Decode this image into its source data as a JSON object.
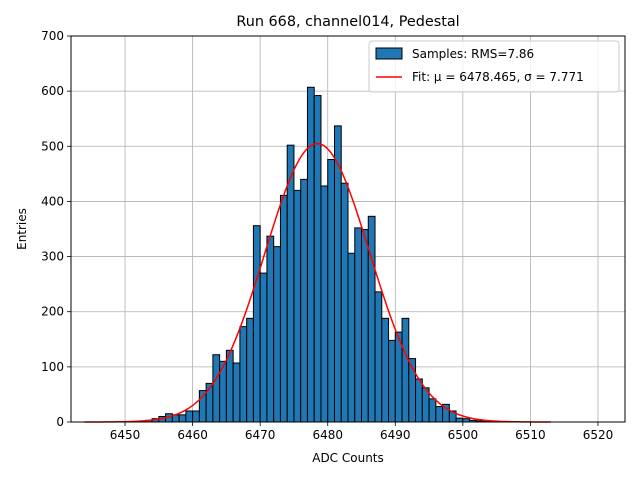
{
  "chart_data": {
    "type": "bar",
    "title": "Run 668, channel014, Pedestal",
    "xlabel": "ADC Counts",
    "ylabel": "Entries",
    "xlim": [
      6442,
      6524
    ],
    "ylim": [
      0,
      700
    ],
    "xticks": [
      6450,
      6460,
      6470,
      6480,
      6490,
      6500,
      6510,
      6520
    ],
    "yticks": [
      0,
      100,
      200,
      300,
      400,
      500,
      600,
      700
    ],
    "grid": true,
    "legend_position": "top-right",
    "bin_width": 1,
    "histogram": {
      "name": "Samples: RMS=7.86",
      "color": "#1f77b4",
      "bins_start": [
        6452,
        6453,
        6454,
        6455,
        6456,
        6457,
        6458,
        6459,
        6460,
        6461,
        6462,
        6463,
        6464,
        6465,
        6466,
        6467,
        6468,
        6469,
        6470,
        6471,
        6472,
        6473,
        6474,
        6475,
        6476,
        6477,
        6478,
        6479,
        6480,
        6481,
        6482,
        6483,
        6484,
        6485,
        6486,
        6487,
        6488,
        6489,
        6490,
        6491,
        6492,
        6493,
        6494,
        6495,
        6496,
        6497,
        6498,
        6499,
        6500,
        6501,
        6502,
        6503
      ],
      "counts": [
        1,
        3,
        6,
        10,
        15,
        13,
        13,
        20,
        20,
        57,
        70,
        122,
        110,
        130,
        107,
        173,
        188,
        356,
        270,
        337,
        318,
        411,
        502,
        420,
        440,
        607,
        592,
        428,
        476,
        537,
        433,
        306,
        352,
        349,
        373,
        236,
        188,
        148,
        163,
        188,
        115,
        78,
        62,
        42,
        28,
        32,
        20,
        7,
        6,
        3,
        2,
        1
      ]
    },
    "fit": {
      "name": "Fit: μ = 6478.465, σ = 7.771",
      "color": "#ff0000",
      "mu": 6478.465,
      "sigma": 7.771,
      "amplitude": 505,
      "x_range": [
        6444,
        6513
      ]
    }
  }
}
